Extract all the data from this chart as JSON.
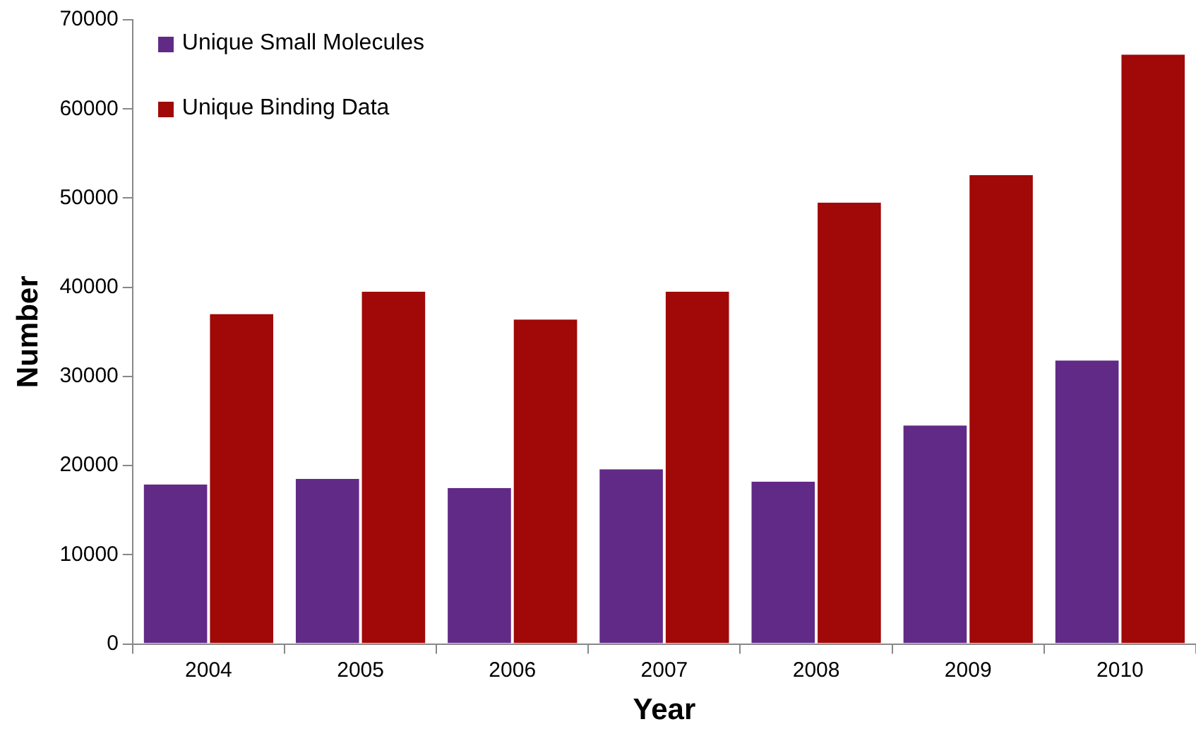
{
  "chart_data": {
    "type": "bar",
    "xlabel": "Year",
    "ylabel": "Number",
    "categories": [
      "2004",
      "2005",
      "2006",
      "2007",
      "2008",
      "2009",
      "2010"
    ],
    "series": [
      {
        "name": "Unique Small Molecules",
        "color": "#622a87",
        "values": [
          17900,
          18500,
          17500,
          19600,
          18200,
          24500,
          31800
        ]
      },
      {
        "name": "Unique Binding Data",
        "color": "#a10808",
        "values": [
          37000,
          39500,
          36400,
          39500,
          49500,
          52600,
          66100
        ]
      }
    ],
    "ylim": [
      0,
      70000
    ],
    "yticks": [
      0,
      10000,
      20000,
      30000,
      40000,
      50000,
      60000,
      70000
    ],
    "grid": false,
    "legend": "top left"
  }
}
